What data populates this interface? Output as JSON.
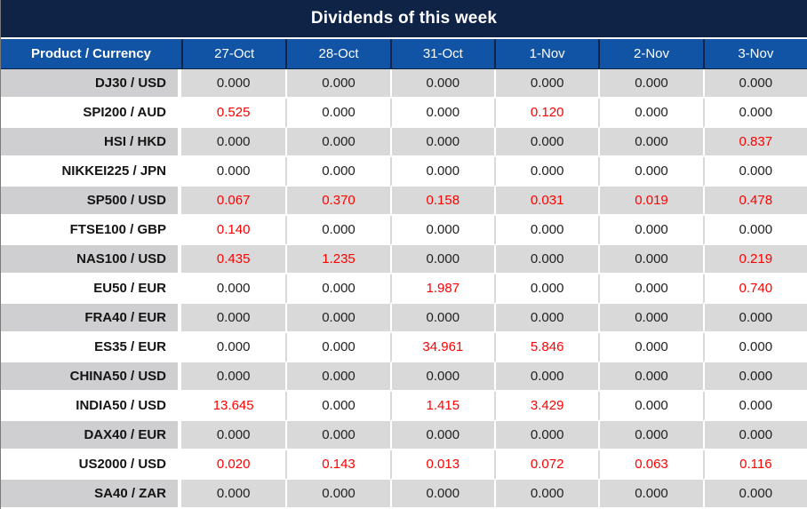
{
  "title": "Dividends of this week",
  "colors": {
    "title_bar_bg": "#0F2347",
    "header_bg": "#1153A5",
    "header_text": "#FFFFFF",
    "row_gray_bg": "#D9D9D9",
    "label_column_gray_bg": "#CFCED0",
    "row_white_bg": "#FFFFFF",
    "zero_value_text": "#1F1F1F",
    "nonzero_value_text": "#FF0000"
  },
  "chart_data": {
    "type": "table",
    "title": "Dividends of this week",
    "columns": [
      "Product / Currency",
      "27-Oct",
      "28-Oct",
      "31-Oct",
      "1-Nov",
      "2-Nov",
      "3-Nov"
    ],
    "value_color_rule": "non-zero dividend values are rendered in red, zeros in black",
    "rows": [
      {
        "product": "DJ30 / USD",
        "values": [
          "0.000",
          "0.000",
          "0.000",
          "0.000",
          "0.000",
          "0.000"
        ]
      },
      {
        "product": "SPI200 / AUD",
        "values": [
          "0.525",
          "0.000",
          "0.000",
          "0.120",
          "0.000",
          "0.000"
        ]
      },
      {
        "product": "HSI / HKD",
        "values": [
          "0.000",
          "0.000",
          "0.000",
          "0.000",
          "0.000",
          "0.837"
        ]
      },
      {
        "product": "NIKKEI225 / JPN",
        "values": [
          "0.000",
          "0.000",
          "0.000",
          "0.000",
          "0.000",
          "0.000"
        ]
      },
      {
        "product": "SP500 / USD",
        "values": [
          "0.067",
          "0.370",
          "0.158",
          "0.031",
          "0.019",
          "0.478"
        ]
      },
      {
        "product": "FTSE100 / GBP",
        "values": [
          "0.140",
          "0.000",
          "0.000",
          "0.000",
          "0.000",
          "0.000"
        ]
      },
      {
        "product": "NAS100 / USD",
        "values": [
          "0.435",
          "1.235",
          "0.000",
          "0.000",
          "0.000",
          "0.219"
        ]
      },
      {
        "product": "EU50 / EUR",
        "values": [
          "0.000",
          "0.000",
          "1.987",
          "0.000",
          "0.000",
          "0.740"
        ]
      },
      {
        "product": "FRA40 / EUR",
        "values": [
          "0.000",
          "0.000",
          "0.000",
          "0.000",
          "0.000",
          "0.000"
        ]
      },
      {
        "product": "ES35 / EUR",
        "values": [
          "0.000",
          "0.000",
          "34.961",
          "5.846",
          "0.000",
          "0.000"
        ]
      },
      {
        "product": "CHINA50 / USD",
        "values": [
          "0.000",
          "0.000",
          "0.000",
          "0.000",
          "0.000",
          "0.000"
        ]
      },
      {
        "product": "INDIA50 / USD",
        "values": [
          "13.645",
          "0.000",
          "1.415",
          "3.429",
          "0.000",
          "0.000"
        ]
      },
      {
        "product": "DAX40 / EUR",
        "values": [
          "0.000",
          "0.000",
          "0.000",
          "0.000",
          "0.000",
          "0.000"
        ]
      },
      {
        "product": "US2000 / USD",
        "values": [
          "0.020",
          "0.143",
          "0.013",
          "0.072",
          "0.063",
          "0.116"
        ]
      },
      {
        "product": "SA40 / ZAR",
        "values": [
          "0.000",
          "0.000",
          "0.000",
          "0.000",
          "0.000",
          "0.000"
        ]
      }
    ]
  }
}
